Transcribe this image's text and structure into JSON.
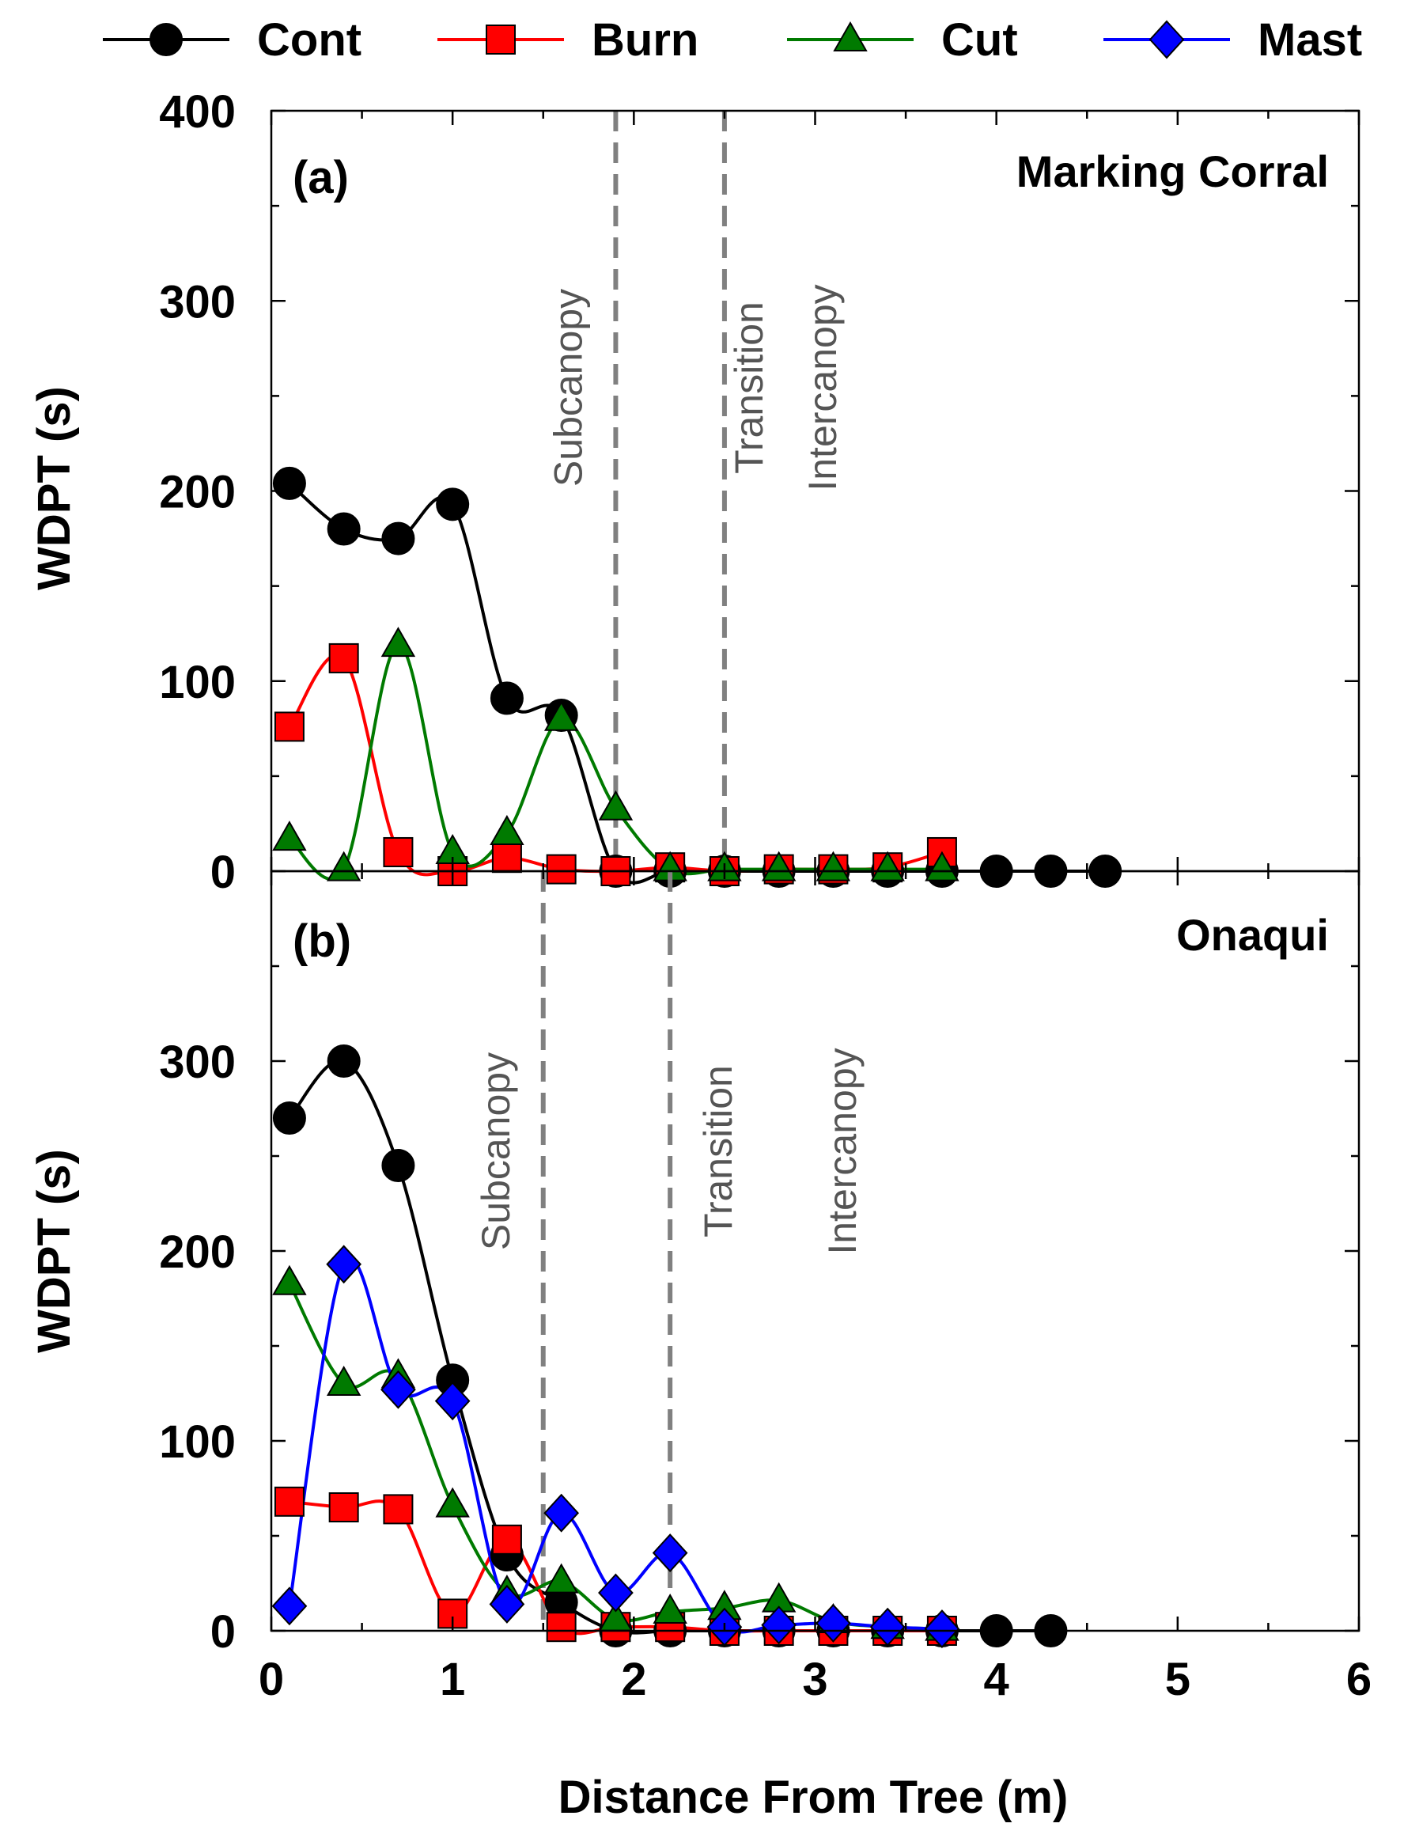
{
  "legend": [
    {
      "name": "Cont",
      "color": "#000000",
      "marker": "circle"
    },
    {
      "name": "Burn",
      "color": "#ff0000",
      "marker": "square"
    },
    {
      "name": "Cut",
      "color": "#007a00",
      "marker": "triangle"
    },
    {
      "name": "Mast",
      "color": "#0000ff",
      "marker": "diamond"
    }
  ],
  "xlabel": "Distance From Tree (m)",
  "ylabel": "WDPT (s)",
  "chart_data": [
    {
      "type": "line",
      "panel": "(a)",
      "site": "Marking Corral",
      "xlabel": "Distance From Tree (m)",
      "ylabel": "WDPT (s)",
      "xlim": [
        0,
        6
      ],
      "ylim": [
        0,
        400
      ],
      "x_ticks": [
        0,
        1,
        2,
        3,
        4,
        5,
        6
      ],
      "y_ticks": [
        0,
        100,
        200,
        300,
        400
      ],
      "zones": [
        {
          "label": "Subcanopy",
          "boundary": 1.9
        },
        {
          "label": "Transition",
          "boundary": 2.5
        },
        {
          "label": "Intercanopy",
          "boundary": null
        }
      ],
      "series": [
        {
          "name": "Cont",
          "x": [
            0.1,
            0.4,
            0.7,
            1.0,
            1.3,
            1.6,
            1.9,
            2.2,
            2.5,
            2.8,
            3.1,
            3.4,
            3.7,
            4.0,
            4.3,
            4.6
          ],
          "values": [
            204,
            180,
            175,
            193,
            91,
            82,
            0,
            0,
            0,
            0,
            0,
            0,
            0,
            0,
            0,
            0
          ]
        },
        {
          "name": "Burn",
          "x": [
            0.1,
            0.4,
            0.7,
            1.0,
            1.3,
            1.6,
            1.9,
            2.2,
            2.5,
            2.8,
            3.1,
            3.4,
            3.7
          ],
          "values": [
            76,
            112,
            10,
            0,
            7,
            1,
            0,
            2,
            0,
            1,
            1,
            2,
            10
          ]
        },
        {
          "name": "Cut",
          "x": [
            0.1,
            0.4,
            0.7,
            1.0,
            1.3,
            1.6,
            1.9,
            2.2,
            2.5,
            2.8,
            3.1,
            3.4,
            3.7
          ],
          "values": [
            17,
            1,
            119,
            10,
            20,
            80,
            33,
            1,
            1,
            1,
            1,
            1,
            1
          ]
        }
      ]
    },
    {
      "type": "line",
      "panel": "(b)",
      "site": "Onaqui",
      "xlabel": "Distance From Tree (m)",
      "ylabel": "WDPT (s)",
      "xlim": [
        0,
        6
      ],
      "ylim": [
        0,
        400
      ],
      "x_ticks": [
        0,
        1,
        2,
        3,
        4,
        5,
        6
      ],
      "y_ticks": [
        0,
        100,
        200,
        300
      ],
      "zones": [
        {
          "label": "Subcanopy",
          "boundary": 1.5
        },
        {
          "label": "Transition",
          "boundary": 2.2
        },
        {
          "label": "Intercanopy",
          "boundary": null
        }
      ],
      "series": [
        {
          "name": "Cont",
          "x": [
            0.1,
            0.4,
            0.7,
            1.0,
            1.3,
            1.6,
            1.9,
            2.2,
            2.5,
            2.8,
            3.1,
            3.4,
            3.7,
            4.0,
            4.3
          ],
          "values": [
            270,
            300,
            245,
            132,
            40,
            15,
            0,
            0,
            0,
            0,
            0,
            0,
            0,
            0,
            0
          ]
        },
        {
          "name": "Burn",
          "x": [
            0.1,
            0.4,
            0.7,
            1.0,
            1.3,
            1.6,
            1.9,
            2.2,
            2.5,
            2.8,
            3.1,
            3.4,
            3.7
          ],
          "values": [
            68,
            65,
            64,
            9,
            48,
            2,
            2,
            2,
            0,
            0,
            0,
            0,
            0
          ]
        },
        {
          "name": "Cut",
          "x": [
            0.1,
            0.4,
            0.7,
            1.0,
            1.3,
            1.6,
            1.9,
            2.2,
            2.5,
            2.8,
            3.1,
            3.4,
            3.7
          ],
          "values": [
            183,
            130,
            134,
            66,
            20,
            26,
            6,
            10,
            12,
            16,
            5,
            2,
            1
          ]
        },
        {
          "name": "Mast",
          "x": [
            0.1,
            0.4,
            0.7,
            1.0,
            1.3,
            1.6,
            1.9,
            2.2,
            2.5,
            2.8,
            3.1,
            3.4,
            3.7
          ],
          "values": [
            13,
            193,
            127,
            121,
            14,
            62,
            20,
            41,
            2,
            3,
            4,
            2,
            1
          ]
        }
      ]
    }
  ]
}
